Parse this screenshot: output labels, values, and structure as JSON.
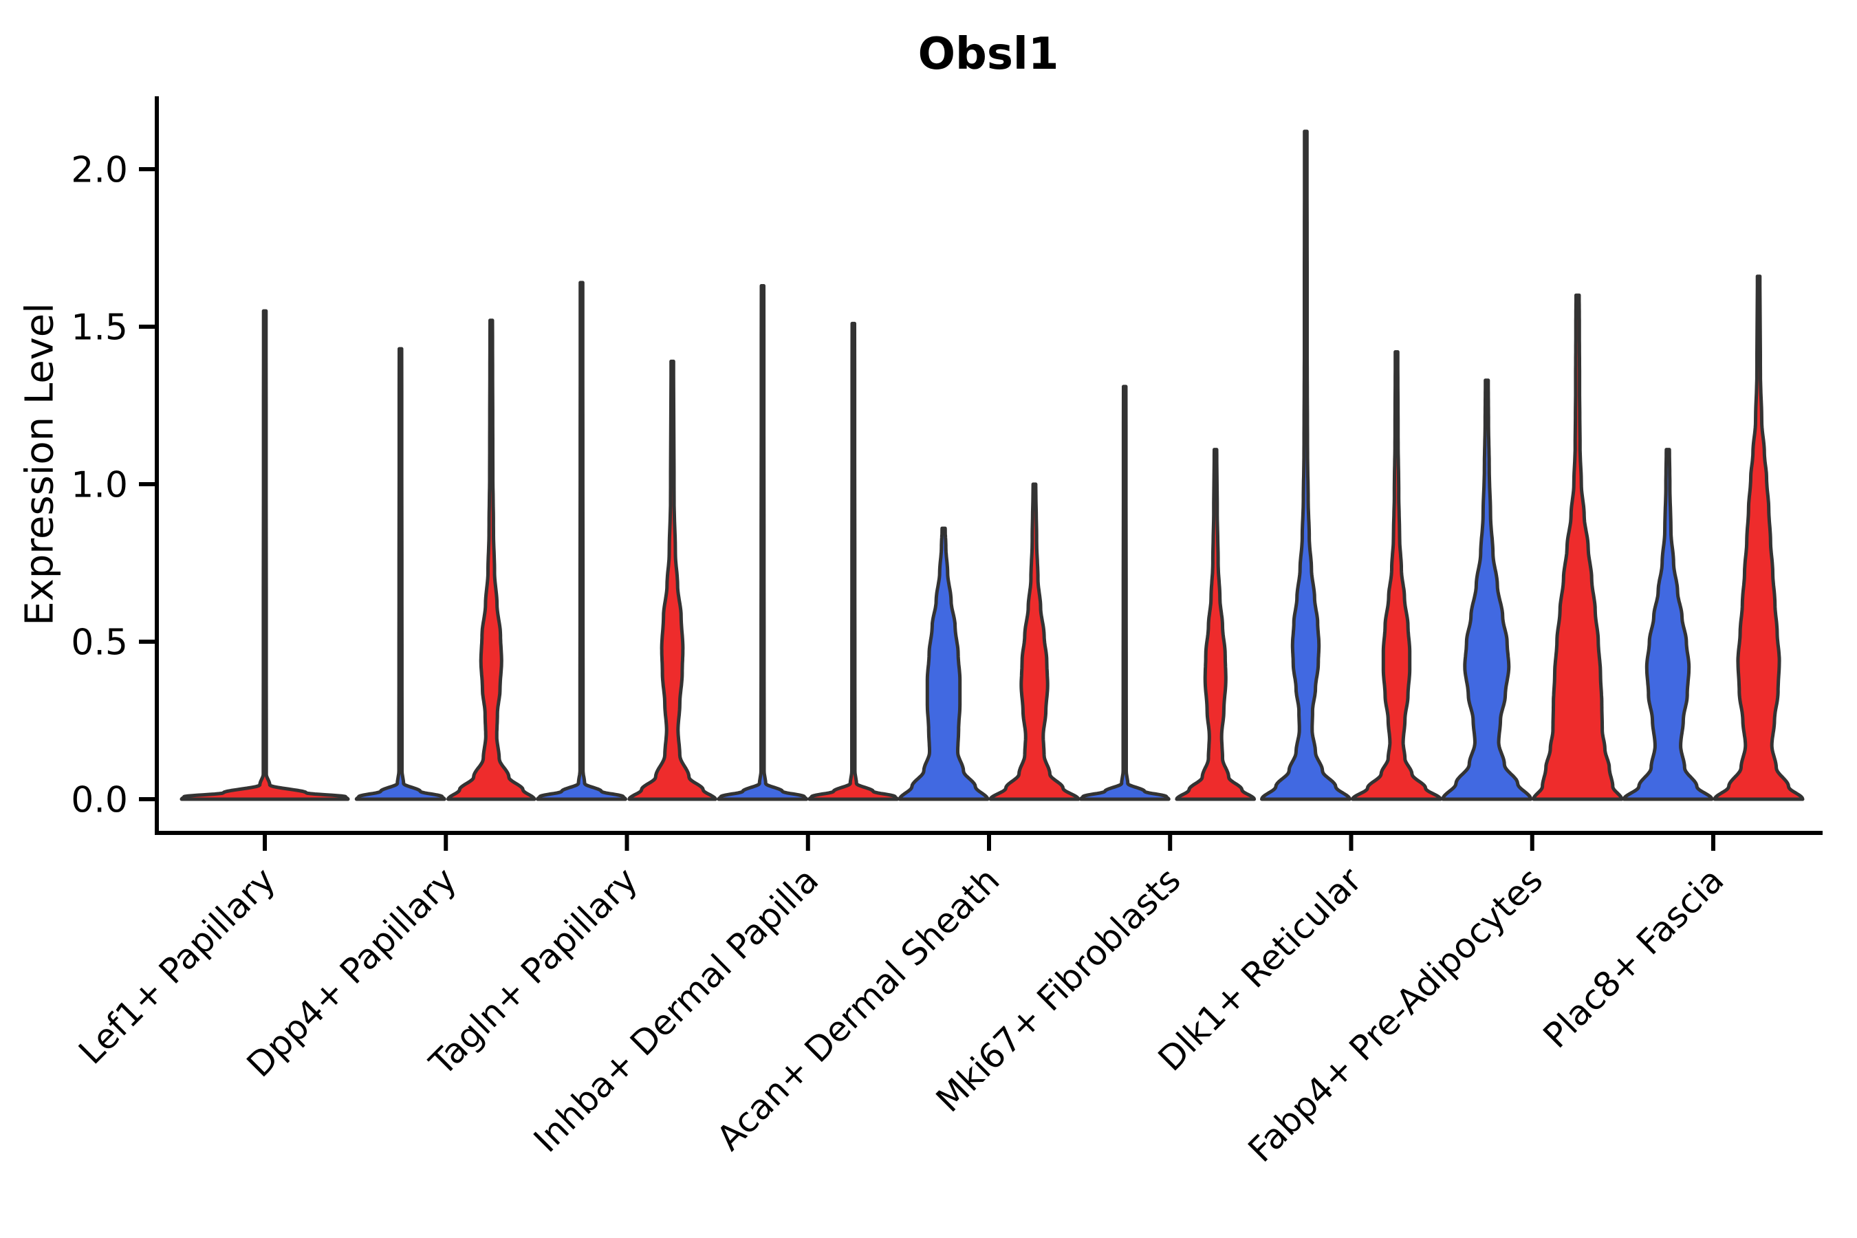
{
  "page": {
    "background": "#ffffff"
  },
  "chart_data": {
    "type": "violin",
    "title": "Obsl1",
    "ylabel": "Expression Level",
    "xlabel": "",
    "ylim": [
      -0.11,
      2.23
    ],
    "grid": false,
    "legend_position": "none",
    "x_tick_rotation": 45,
    "spines": [
      "left",
      "bottom"
    ],
    "outline_color": "#333333",
    "axis_color": "#000000",
    "series": [
      {
        "name": "blue",
        "color": "#4169E1"
      },
      {
        "name": "red",
        "color": "#EE2C2C"
      }
    ],
    "yticks": [
      {
        "v": 0.0,
        "label": "0.0"
      },
      {
        "v": 0.5,
        "label": "0.5"
      },
      {
        "v": 1.0,
        "label": "1.0"
      },
      {
        "v": 1.5,
        "label": "1.5"
      },
      {
        "v": 2.0,
        "label": "2.0"
      }
    ],
    "categories": [
      "Lef1+ Papillary",
      "Dpp4+ Papillary",
      "Tagln+ Papillary",
      "Inhba+ Dermal Papilla",
      "Acan+ Dermal Sheath",
      "Mki67+ Fibroblasts",
      "Dlk1+ Reticular",
      "Fabp4+ Pre-Adipocytes",
      "Plac8+ Fascia"
    ],
    "violins": [
      {
        "category": 0,
        "series": "red",
        "position": "center",
        "max_expression": 1.55,
        "profile": [
          [
            0,
            1
          ],
          [
            0.008,
            0.97
          ],
          [
            0.02,
            0.5
          ],
          [
            0.045,
            0.06
          ],
          [
            0.08,
            0.018
          ],
          [
            1.55,
            0.015
          ]
        ]
      },
      {
        "category": 1,
        "series": "blue",
        "position": "left",
        "max_expression": 1.43,
        "profile": [
          [
            0,
            1
          ],
          [
            0.008,
            0.95
          ],
          [
            0.025,
            0.45
          ],
          [
            0.05,
            0.07
          ],
          [
            0.09,
            0.035
          ],
          [
            1.43,
            0.028
          ]
        ]
      },
      {
        "category": 1,
        "series": "red",
        "position": "right",
        "max_expression": 1.52,
        "profile": [
          [
            0,
            0.98
          ],
          [
            0.03,
            0.72
          ],
          [
            0.07,
            0.4
          ],
          [
            0.13,
            0.18
          ],
          [
            0.2,
            0.125
          ],
          [
            0.27,
            0.14
          ],
          [
            0.35,
            0.2
          ],
          [
            0.44,
            0.235
          ],
          [
            0.52,
            0.21
          ],
          [
            0.62,
            0.13
          ],
          [
            0.72,
            0.075
          ],
          [
            0.85,
            0.05
          ],
          [
            1.05,
            0.036
          ],
          [
            1.52,
            0.028
          ]
        ]
      },
      {
        "category": 2,
        "series": "blue",
        "position": "left",
        "max_expression": 1.64,
        "profile": [
          [
            0,
            1
          ],
          [
            0.008,
            0.95
          ],
          [
            0.025,
            0.45
          ],
          [
            0.05,
            0.07
          ],
          [
            0.09,
            0.035
          ],
          [
            1.64,
            0.028
          ]
        ]
      },
      {
        "category": 2,
        "series": "red",
        "position": "right",
        "max_expression": 1.39,
        "profile": [
          [
            0,
            0.98
          ],
          [
            0.03,
            0.7
          ],
          [
            0.07,
            0.38
          ],
          [
            0.14,
            0.17
          ],
          [
            0.22,
            0.13
          ],
          [
            0.3,
            0.17
          ],
          [
            0.4,
            0.225
          ],
          [
            0.48,
            0.24
          ],
          [
            0.58,
            0.2
          ],
          [
            0.68,
            0.12
          ],
          [
            0.78,
            0.07
          ],
          [
            0.95,
            0.04
          ],
          [
            1.39,
            0.028
          ]
        ]
      },
      {
        "category": 3,
        "series": "blue",
        "position": "left",
        "max_expression": 1.63,
        "profile": [
          [
            0,
            1
          ],
          [
            0.008,
            0.95
          ],
          [
            0.025,
            0.45
          ],
          [
            0.05,
            0.07
          ],
          [
            0.09,
            0.035
          ],
          [
            1.63,
            0.028
          ]
        ]
      },
      {
        "category": 3,
        "series": "red",
        "position": "right",
        "max_expression": 1.51,
        "profile": [
          [
            0,
            1
          ],
          [
            0.008,
            0.95
          ],
          [
            0.025,
            0.45
          ],
          [
            0.05,
            0.07
          ],
          [
            0.09,
            0.035
          ],
          [
            1.51,
            0.028
          ]
        ]
      },
      {
        "category": 4,
        "series": "blue",
        "position": "left",
        "max_expression": 0.86,
        "profile": [
          [
            0,
            1
          ],
          [
            0.04,
            0.72
          ],
          [
            0.09,
            0.45
          ],
          [
            0.15,
            0.32
          ],
          [
            0.22,
            0.34
          ],
          [
            0.3,
            0.37
          ],
          [
            0.38,
            0.37
          ],
          [
            0.46,
            0.33
          ],
          [
            0.55,
            0.26
          ],
          [
            0.63,
            0.17
          ],
          [
            0.72,
            0.09
          ],
          [
            0.8,
            0.05
          ],
          [
            0.86,
            0.035
          ]
        ]
      },
      {
        "category": 4,
        "series": "red",
        "position": "right",
        "max_expression": 1.0,
        "profile": [
          [
            0,
            1
          ],
          [
            0.035,
            0.65
          ],
          [
            0.08,
            0.35
          ],
          [
            0.14,
            0.22
          ],
          [
            0.2,
            0.2
          ],
          [
            0.28,
            0.26
          ],
          [
            0.36,
            0.3
          ],
          [
            0.44,
            0.28
          ],
          [
            0.52,
            0.22
          ],
          [
            0.61,
            0.14
          ],
          [
            0.7,
            0.08
          ],
          [
            0.82,
            0.05
          ],
          [
            1,
            0.03
          ]
        ]
      },
      {
        "category": 5,
        "series": "blue",
        "position": "left",
        "max_expression": 1.31,
        "profile": [
          [
            0,
            1
          ],
          [
            0.008,
            0.95
          ],
          [
            0.025,
            0.45
          ],
          [
            0.05,
            0.07
          ],
          [
            0.09,
            0.035
          ],
          [
            1.31,
            0.028
          ]
        ]
      },
      {
        "category": 5,
        "series": "red",
        "position": "right",
        "max_expression": 1.11,
        "profile": [
          [
            0,
            0.88
          ],
          [
            0.03,
            0.6
          ],
          [
            0.07,
            0.3
          ],
          [
            0.13,
            0.16
          ],
          [
            0.2,
            0.14
          ],
          [
            0.28,
            0.19
          ],
          [
            0.38,
            0.235
          ],
          [
            0.46,
            0.22
          ],
          [
            0.55,
            0.16
          ],
          [
            0.64,
            0.1
          ],
          [
            0.75,
            0.06
          ],
          [
            0.92,
            0.04
          ],
          [
            1.11,
            0.028
          ]
        ]
      },
      {
        "category": 6,
        "series": "blue",
        "position": "left",
        "max_expression": 2.12,
        "profile": [
          [
            0,
            1
          ],
          [
            0.04,
            0.68
          ],
          [
            0.09,
            0.38
          ],
          [
            0.15,
            0.22
          ],
          [
            0.22,
            0.145
          ],
          [
            0.28,
            0.155
          ],
          [
            0.35,
            0.22
          ],
          [
            0.43,
            0.285
          ],
          [
            0.49,
            0.3
          ],
          [
            0.56,
            0.27
          ],
          [
            0.64,
            0.2
          ],
          [
            0.73,
            0.13
          ],
          [
            0.83,
            0.08
          ],
          [
            0.95,
            0.055
          ],
          [
            1.1,
            0.04
          ],
          [
            1.4,
            0.032
          ],
          [
            2.12,
            0.028
          ]
        ]
      },
      {
        "category": 6,
        "series": "red",
        "position": "right",
        "max_expression": 1.42,
        "profile": [
          [
            0,
            1
          ],
          [
            0.035,
            0.66
          ],
          [
            0.08,
            0.35
          ],
          [
            0.13,
            0.19
          ],
          [
            0.18,
            0.15
          ],
          [
            0.25,
            0.19
          ],
          [
            0.33,
            0.26
          ],
          [
            0.41,
            0.3
          ],
          [
            0.47,
            0.3
          ],
          [
            0.55,
            0.26
          ],
          [
            0.64,
            0.18
          ],
          [
            0.73,
            0.11
          ],
          [
            0.83,
            0.07
          ],
          [
            0.97,
            0.05
          ],
          [
            1.15,
            0.035
          ],
          [
            1.42,
            0.028
          ]
        ]
      },
      {
        "category": 7,
        "series": "blue",
        "position": "left",
        "max_expression": 1.33,
        "profile": [
          [
            0,
            1
          ],
          [
            0.05,
            0.7
          ],
          [
            0.11,
            0.4
          ],
          [
            0.18,
            0.27
          ],
          [
            0.25,
            0.31
          ],
          [
            0.33,
            0.42
          ],
          [
            0.42,
            0.5
          ],
          [
            0.5,
            0.46
          ],
          [
            0.58,
            0.36
          ],
          [
            0.68,
            0.24
          ],
          [
            0.78,
            0.14
          ],
          [
            0.9,
            0.085
          ],
          [
            1.05,
            0.055
          ],
          [
            1.2,
            0.038
          ],
          [
            1.33,
            0.032
          ]
        ]
      },
      {
        "category": 7,
        "series": "red",
        "position": "right",
        "max_expression": 1.6,
        "profile": [
          [
            0,
            1
          ],
          [
            0.04,
            0.8
          ],
          [
            0.1,
            0.72
          ],
          [
            0.16,
            0.62
          ],
          [
            0.22,
            0.56
          ],
          [
            0.3,
            0.55
          ],
          [
            0.4,
            0.52
          ],
          [
            0.5,
            0.47
          ],
          [
            0.6,
            0.4
          ],
          [
            0.7,
            0.32
          ],
          [
            0.8,
            0.24
          ],
          [
            0.9,
            0.15
          ],
          [
            1,
            0.085
          ],
          [
            1.12,
            0.055
          ],
          [
            1.3,
            0.045
          ],
          [
            1.5,
            0.04
          ],
          [
            1.6,
            0.035
          ]
        ]
      },
      {
        "category": 8,
        "series": "blue",
        "position": "left",
        "max_expression": 1.11,
        "profile": [
          [
            0,
            1
          ],
          [
            0.04,
            0.66
          ],
          [
            0.1,
            0.38
          ],
          [
            0.17,
            0.29
          ],
          [
            0.25,
            0.35
          ],
          [
            0.33,
            0.44
          ],
          [
            0.42,
            0.48
          ],
          [
            0.5,
            0.42
          ],
          [
            0.58,
            0.32
          ],
          [
            0.66,
            0.22
          ],
          [
            0.75,
            0.13
          ],
          [
            0.85,
            0.07
          ],
          [
            1,
            0.045
          ],
          [
            1.11,
            0.035
          ]
        ]
      },
      {
        "category": 8,
        "series": "red",
        "position": "right",
        "max_expression": 1.66,
        "profile": [
          [
            0,
            1
          ],
          [
            0.04,
            0.68
          ],
          [
            0.1,
            0.4
          ],
          [
            0.17,
            0.3
          ],
          [
            0.25,
            0.36
          ],
          [
            0.34,
            0.44
          ],
          [
            0.44,
            0.47
          ],
          [
            0.53,
            0.42
          ],
          [
            0.62,
            0.37
          ],
          [
            0.72,
            0.32
          ],
          [
            0.82,
            0.27
          ],
          [
            0.92,
            0.23
          ],
          [
            1.02,
            0.18
          ],
          [
            1.1,
            0.13
          ],
          [
            1.2,
            0.07
          ],
          [
            1.35,
            0.04
          ],
          [
            1.66,
            0.028
          ]
        ]
      }
    ]
  }
}
